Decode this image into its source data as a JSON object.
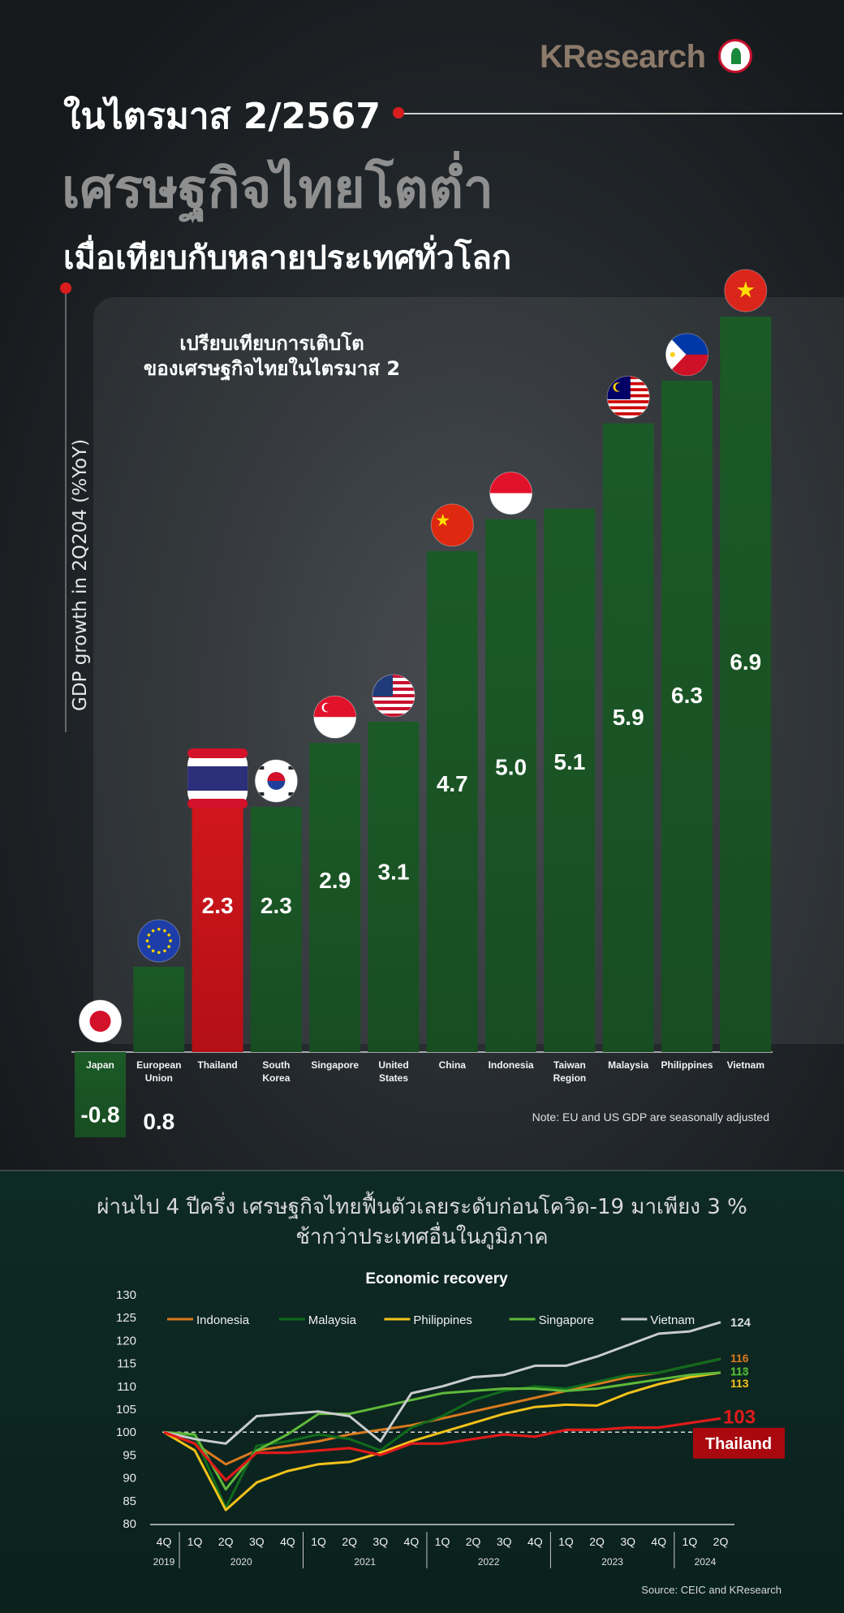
{
  "brand": "KResearch",
  "header": {
    "line1": "ในไตรมาส 2/2567",
    "line2": "เศรษฐกิจไทยโตต่ำ",
    "line3": "เมื่อเทียบกับหลายประเทศทั่วโลก"
  },
  "subtitle_lines": [
    "เปรียบเทียบการเติบโต",
    "ของเศรษฐกิจไทยในไตรมาส 2"
  ],
  "note": "Note: EU and US GDP are seasonally adjusted",
  "section2": {
    "line1": "ผ่านไป 4 ปีครึ่ง เศรษฐกิจไทยฟื้นตัวเลยระดับก่อนโควิด-19  มาเพียง 3 %",
    "line2": "ช้ากว่าประเทศอื่นในภูมิภาค"
  },
  "source": "Source: CEIC and KResearch",
  "colors": {
    "bar_green": "#1f5a2a",
    "bar_red": "#c8151b",
    "accent_red": "#d81e1e"
  },
  "chart_data": [
    {
      "type": "bar",
      "title": "",
      "ylabel": "GDP growth in 2Q204 (%YoY)",
      "categories": [
        "Japan",
        "European Union",
        "Thailand",
        "South Korea",
        "Singapore",
        "United States",
        "China",
        "Indonesia",
        "Taiwan Region",
        "Malaysia",
        "Philippines",
        "Vietnam"
      ],
      "values": [
        -0.8,
        0.8,
        2.3,
        2.3,
        2.9,
        3.1,
        4.7,
        5.0,
        5.1,
        5.9,
        6.3,
        6.9
      ],
      "value_labels": [
        "-0.8",
        "0.8",
        "2.3",
        "2.3",
        "2.9",
        "3.1",
        "4.7",
        "5.0",
        "5.1",
        "5.9",
        "6.3",
        "6.9"
      ],
      "highlight": "Thailand",
      "flags": [
        "japan-flag-icon",
        "eu-flag-icon",
        "thailand-flag-icon",
        "south-korea-flag-icon",
        "singapore-flag-icon",
        "us-flag-icon",
        "china-flag-icon",
        "indonesia-flag-icon",
        "taiwan-region-flag-icon",
        "malaysia-flag-icon",
        "philippines-flag-icon",
        "vietnam-flag-icon"
      ]
    },
    {
      "type": "line",
      "title": "Economic recovery",
      "ylim": [
        80,
        130
      ],
      "yticks": [
        80,
        85,
        90,
        95,
        100,
        105,
        110,
        115,
        120,
        125,
        130
      ],
      "x_quarters": [
        "4Q",
        "1Q",
        "2Q",
        "3Q",
        "4Q",
        "1Q",
        "2Q",
        "3Q",
        "4Q",
        "1Q",
        "2Q",
        "3Q",
        "4Q",
        "1Q",
        "2Q",
        "3Q",
        "4Q",
        "1Q",
        "2Q"
      ],
      "x_years": [
        {
          "label": "2019",
          "from": 0,
          "to": 0
        },
        {
          "label": "2020",
          "from": 1,
          "to": 4
        },
        {
          "label": "2021",
          "from": 5,
          "to": 8
        },
        {
          "label": "2022",
          "from": 9,
          "to": 12
        },
        {
          "label": "2023",
          "from": 13,
          "to": 16
        },
        {
          "label": "2024",
          "from": 17,
          "to": 18
        }
      ],
      "reference_line": 100,
      "series": [
        {
          "name": "Indonesia",
          "color": "#d97a1e",
          "end_label": "116",
          "values": [
            100,
            97.5,
            93,
            96,
            97,
            98,
            99.5,
            100.5,
            101.5,
            103,
            104.5,
            106,
            107.5,
            109,
            110.5,
            112,
            113,
            114.5,
            116
          ]
        },
        {
          "name": "Malaysia",
          "color": "#0f6b1c",
          "end_label": "116",
          "values": [
            100,
            99,
            83.5,
            97,
            98,
            99.5,
            98.5,
            96,
            101,
            103.5,
            107,
            109,
            110,
            109.5,
            111,
            112.5,
            113,
            114.5,
            116
          ]
        },
        {
          "name": "Philippines",
          "color": "#f2c21b",
          "end_label": "113",
          "values": [
            100,
            96,
            83,
            89,
            91.5,
            93,
            93.5,
            95.5,
            98,
            100,
            102,
            104,
            105.5,
            106,
            105.8,
            108.5,
            110.5,
            112,
            113
          ]
        },
        {
          "name": "Singapore",
          "color": "#5fb83a",
          "end_label": "113",
          "values": [
            100,
            99.5,
            87.5,
            96,
            99.5,
            104,
            104,
            105.5,
            107,
            108.5,
            109,
            109.5,
            109.5,
            109,
            109.5,
            110.5,
            111.5,
            112.5,
            113
          ]
        },
        {
          "name": "Vietnam",
          "color": "#c8cccc",
          "end_label": "124",
          "values": [
            100,
            98.5,
            97.5,
            103.5,
            104,
            104.5,
            103.5,
            98,
            108.5,
            110,
            112,
            112.5,
            114.5,
            114.5,
            116.5,
            119,
            121.5,
            122,
            124
          ]
        },
        {
          "name": "Thailand",
          "color": "#e01b1b",
          "end_label": "103",
          "values": [
            100,
            97.5,
            89.5,
            95.5,
            95.5,
            96,
            96.5,
            95,
            97.5,
            97.5,
            98.5,
            99.5,
            99,
            100.5,
            100.5,
            101,
            101,
            102,
            103
          ]
        }
      ],
      "legend": [
        "Indonesia",
        "Malaysia",
        "Philippines",
        "Singapore",
        "Vietnam"
      ],
      "callout": "Thailand"
    }
  ]
}
